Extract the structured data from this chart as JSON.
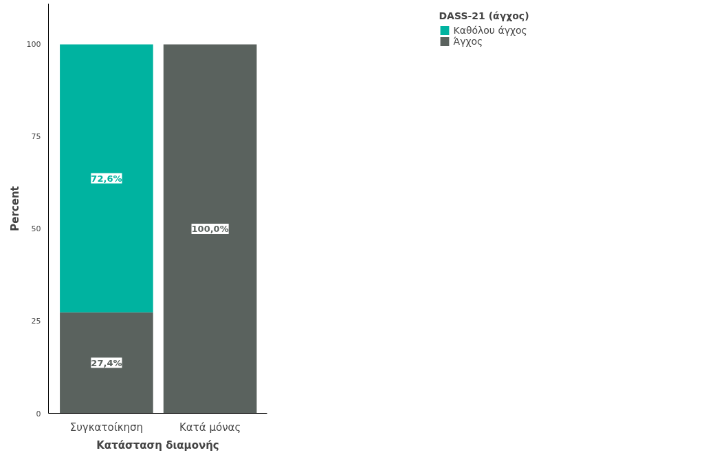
{
  "chart_data": {
    "type": "bar",
    "stacked": true,
    "xlabel": "Κατάσταση διαμονής",
    "ylabel": "Percent",
    "legend_title": "DASS-21 (άγχος)",
    "legend": "top right",
    "categories": [
      "Συγκατοίκηση",
      "Κατά μόνας"
    ],
    "series": [
      {
        "name": "Άγχος",
        "color": "#5a625e",
        "values": [
          27.4,
          100
        ],
        "value_labels": [
          "27,4%",
          "100,0%"
        ]
      },
      {
        "name": "Καθόλου άγχος",
        "color": "#00b3a0",
        "values": [
          72.6,
          null
        ],
        "value_labels": [
          "72,6%",
          null
        ]
      }
    ],
    "ylim": [
      0,
      111
    ],
    "yticks": [
      0,
      25,
      50,
      75,
      100
    ],
    "grid": false
  }
}
